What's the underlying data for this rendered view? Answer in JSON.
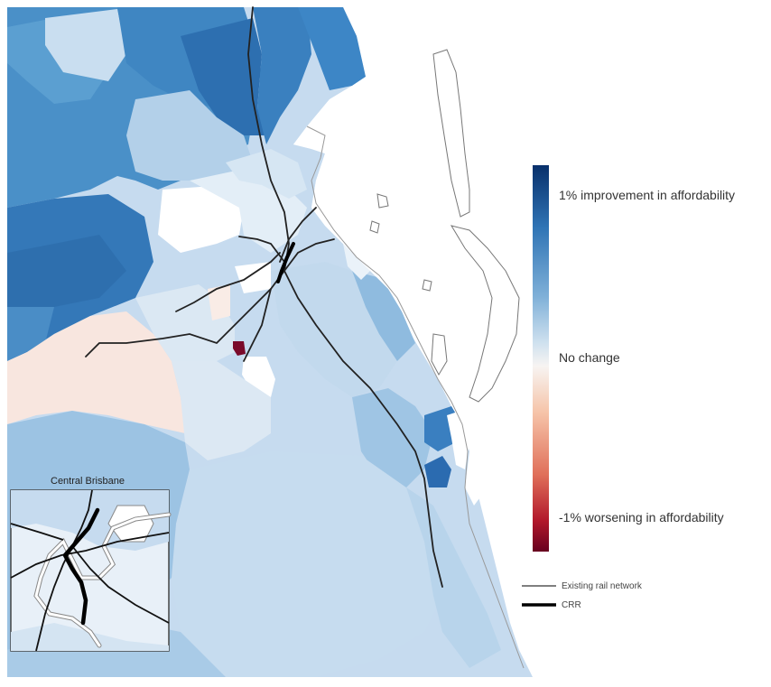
{
  "map": {
    "inset_title": "Central Brisbane",
    "colors": {
      "improvement_strong": "#08306b",
      "improvement": "#2f74b5",
      "no_change": "#f7f4f2",
      "worsening": "#b2182b",
      "worsening_strong": "#67001f",
      "rail": "#222222"
    }
  },
  "color_legend": {
    "top_label": "1% improvement in affordability",
    "middle_label": "No change",
    "bottom_label": "-1% worsening in affordability"
  },
  "rail_legend": {
    "existing_label": "Existing rail network",
    "crr_label": "CRR"
  }
}
